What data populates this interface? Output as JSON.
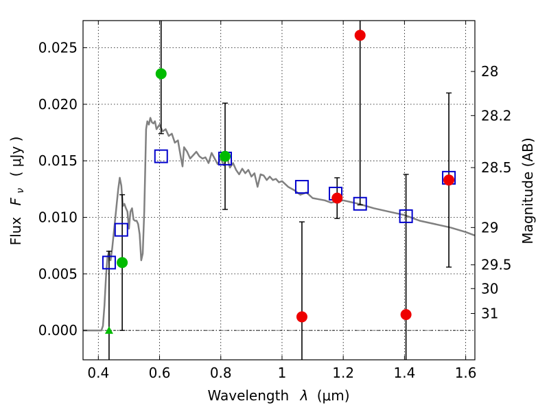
{
  "chart_data": {
    "type": "scatter",
    "xlabel_text": "Wavelength",
    "xlabel_sym": "λ",
    "xlabel_unit": "(μm)",
    "ylabel_text": "Flux",
    "ylabel_sym": "F",
    "ylabel_sub": "ν",
    "ylabel_unit": "( μJy )",
    "y2label": "Magnitude (AB)",
    "xlim": [
      0.35,
      1.63
    ],
    "ylim": [
      -0.0026,
      0.0274
    ],
    "xticks": [
      {
        "value": 0.4,
        "label": "0.4"
      },
      {
        "value": 0.6,
        "label": "0.6"
      },
      {
        "value": 0.8,
        "label": "0.8"
      },
      {
        "value": 1.0,
        "label": "1"
      },
      {
        "value": 1.2,
        "label": "1.2"
      },
      {
        "value": 1.4,
        "label": "1.4"
      },
      {
        "value": 1.6,
        "label": "1.6"
      }
    ],
    "yticks": [
      {
        "value": 0.0,
        "label": "0.000"
      },
      {
        "value": 0.005,
        "label": "0.005"
      },
      {
        "value": 0.01,
        "label": "0.010"
      },
      {
        "value": 0.015,
        "label": "0.015"
      },
      {
        "value": 0.02,
        "label": "0.020"
      },
      {
        "value": 0.025,
        "label": "0.025"
      }
    ],
    "mag_ticks": [
      {
        "value": 0.0229,
        "label": "28"
      },
      {
        "value": 0.019,
        "label": "28.2"
      },
      {
        "value": 0.0144,
        "label": "28.5"
      },
      {
        "value": 0.0091,
        "label": "29"
      },
      {
        "value": 0.0058,
        "label": "29.5"
      },
      {
        "value": 0.0037,
        "label": "30"
      },
      {
        "value": 0.0015,
        "label": "31"
      }
    ],
    "template_spectrum": [
      [
        0.35,
        0.0
      ],
      [
        0.41,
        0.0
      ],
      [
        0.415,
        0.0004
      ],
      [
        0.42,
        0.0022
      ],
      [
        0.425,
        0.0048
      ],
      [
        0.43,
        0.0065
      ],
      [
        0.435,
        0.007
      ],
      [
        0.44,
        0.0062
      ],
      [
        0.445,
        0.0072
      ],
      [
        0.45,
        0.0085
      ],
      [
        0.455,
        0.0098
      ],
      [
        0.46,
        0.0112
      ],
      [
        0.465,
        0.0125
      ],
      [
        0.47,
        0.0135
      ],
      [
        0.475,
        0.0128
      ],
      [
        0.48,
        0.011
      ],
      [
        0.485,
        0.0112
      ],
      [
        0.49,
        0.0108
      ],
      [
        0.495,
        0.0105
      ],
      [
        0.5,
        0.009
      ],
      [
        0.505,
        0.0105
      ],
      [
        0.51,
        0.0108
      ],
      [
        0.515,
        0.0098
      ],
      [
        0.52,
        0.0097
      ],
      [
        0.525,
        0.0097
      ],
      [
        0.53,
        0.0094
      ],
      [
        0.535,
        0.0085
      ],
      [
        0.54,
        0.0062
      ],
      [
        0.545,
        0.0068
      ],
      [
        0.55,
        0.0105
      ],
      [
        0.553,
        0.0142
      ],
      [
        0.556,
        0.0178
      ],
      [
        0.56,
        0.0185
      ],
      [
        0.565,
        0.0182
      ],
      [
        0.57,
        0.0188
      ],
      [
        0.575,
        0.0184
      ],
      [
        0.58,
        0.0183
      ],
      [
        0.585,
        0.0185
      ],
      [
        0.59,
        0.0178
      ],
      [
        0.6,
        0.0182
      ],
      [
        0.61,
        0.0176
      ],
      [
        0.62,
        0.0178
      ],
      [
        0.63,
        0.0172
      ],
      [
        0.64,
        0.0174
      ],
      [
        0.65,
        0.0166
      ],
      [
        0.66,
        0.0168
      ],
      [
        0.67,
        0.0152
      ],
      [
        0.675,
        0.0145
      ],
      [
        0.68,
        0.0162
      ],
      [
        0.69,
        0.0158
      ],
      [
        0.7,
        0.0152
      ],
      [
        0.71,
        0.0155
      ],
      [
        0.72,
        0.0158
      ],
      [
        0.73,
        0.0154
      ],
      [
        0.74,
        0.0152
      ],
      [
        0.75,
        0.0153
      ],
      [
        0.76,
        0.0148
      ],
      [
        0.77,
        0.0157
      ],
      [
        0.78,
        0.0152
      ],
      [
        0.79,
        0.0147
      ],
      [
        0.8,
        0.0152
      ],
      [
        0.81,
        0.0146
      ],
      [
        0.82,
        0.0153
      ],
      [
        0.83,
        0.0144
      ],
      [
        0.84,
        0.0148
      ],
      [
        0.85,
        0.0142
      ],
      [
        0.86,
        0.0138
      ],
      [
        0.87,
        0.0143
      ],
      [
        0.88,
        0.0139
      ],
      [
        0.89,
        0.0142
      ],
      [
        0.9,
        0.0136
      ],
      [
        0.91,
        0.0139
      ],
      [
        0.92,
        0.0127
      ],
      [
        0.93,
        0.0138
      ],
      [
        0.94,
        0.0137
      ],
      [
        0.95,
        0.0133
      ],
      [
        0.96,
        0.0136
      ],
      [
        0.97,
        0.0133
      ],
      [
        0.98,
        0.0134
      ],
      [
        0.99,
        0.0131
      ],
      [
        1.0,
        0.0132
      ],
      [
        1.02,
        0.0127
      ],
      [
        1.04,
        0.0124
      ],
      [
        1.06,
        0.012
      ],
      [
        1.08,
        0.0122
      ],
      [
        1.1,
        0.0117
      ],
      [
        1.12,
        0.0116
      ],
      [
        1.14,
        0.0115
      ],
      [
        1.16,
        0.0113
      ],
      [
        1.18,
        0.0114
      ],
      [
        1.2,
        0.0115
      ],
      [
        1.25,
        0.0112
      ],
      [
        1.3,
        0.0108
      ],
      [
        1.35,
        0.0105
      ],
      [
        1.4,
        0.0102
      ],
      [
        1.45,
        0.0097
      ],
      [
        1.5,
        0.0094
      ],
      [
        1.55,
        0.0091
      ],
      [
        1.6,
        0.0087
      ],
      [
        1.63,
        0.0084
      ]
    ],
    "model_points": [
      {
        "x": 0.435,
        "y": 0.006
      },
      {
        "x": 0.475,
        "y": 0.0089
      },
      {
        "x": 0.605,
        "y": 0.0154
      },
      {
        "x": 0.814,
        "y": 0.0152
      },
      {
        "x": 1.065,
        "y": 0.0127
      },
      {
        "x": 1.175,
        "y": 0.0121
      },
      {
        "x": 1.255,
        "y": 0.0112
      },
      {
        "x": 1.405,
        "y": 0.0101
      },
      {
        "x": 1.545,
        "y": 0.0135
      }
    ],
    "observed_green": [
      {
        "x": 0.478,
        "y": 0.006,
        "err": 0.006
      },
      {
        "x": 0.605,
        "y": 0.0227,
        "err": 0.0053
      },
      {
        "x": 0.814,
        "y": 0.0154,
        "err": 0.0047
      }
    ],
    "observed_red": [
      {
        "x": 1.065,
        "y": 0.0012,
        "err": 0.0084
      },
      {
        "x": 1.18,
        "y": 0.0117,
        "err": 0.0018
      },
      {
        "x": 1.255,
        "y": 0.0261,
        "err": 0.015
      },
      {
        "x": 1.405,
        "y": 0.0014,
        "err": 0.0124
      },
      {
        "x": 1.545,
        "y": 0.0133,
        "err": 0.0077
      }
    ],
    "upper_limits": [
      {
        "x": 0.435,
        "y": 0.0,
        "err": 0.007
      }
    ],
    "colors": {
      "spectrum": "#808080",
      "model": "#0000cc",
      "green": "#00bb00",
      "red": "#ee0000",
      "errorbar": "#000000"
    }
  }
}
